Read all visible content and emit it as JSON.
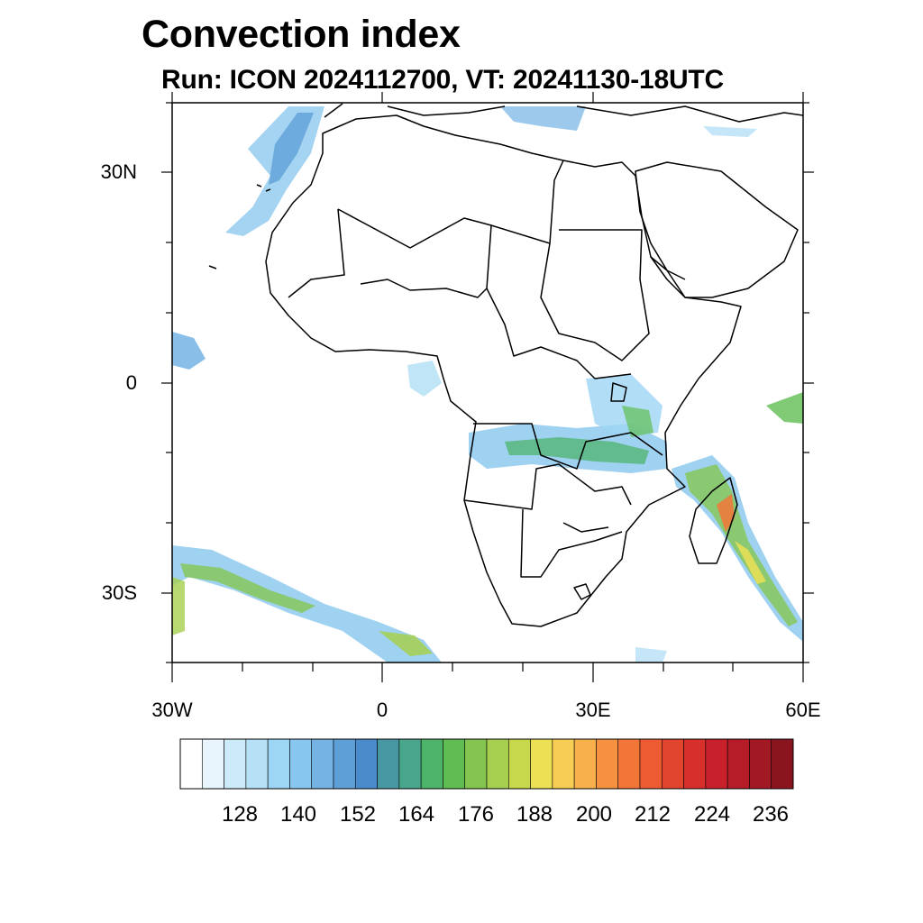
{
  "title": "Convection index",
  "subtitle": "Run: ICON 2024112700,  VT: 20241130-18UTC",
  "lat_labels": [
    "30N",
    "0",
    "30S"
  ],
  "lon_labels": [
    "30W",
    "0",
    "30E",
    "60E"
  ],
  "colorbar": {
    "labels": [
      "128",
      "140",
      "152",
      "164",
      "176",
      "188",
      "200",
      "212",
      "224",
      "236"
    ],
    "colors": [
      "#ffffff",
      "#e8f5fc",
      "#cdeaf8",
      "#b5e0f6",
      "#9dd6f4",
      "#87c6ee",
      "#74b3e4",
      "#5f9fd8",
      "#4a8ccb",
      "#4898a4",
      "#49a58b",
      "#4db36a",
      "#60bd52",
      "#84c551",
      "#a6cf4f",
      "#c8d84d",
      "#ece055",
      "#f7cd55",
      "#f8b04d",
      "#f69140",
      "#f27638",
      "#ec5b31",
      "#e2452d",
      "#d72f2c",
      "#c8212b",
      "#b51c27",
      "#a01923",
      "#8b151e"
    ]
  },
  "colors": {
    "coastline": "#000000",
    "frame": "#000000"
  }
}
